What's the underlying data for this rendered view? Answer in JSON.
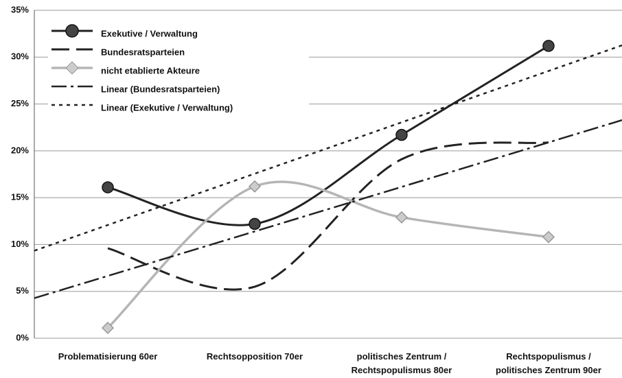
{
  "chart_data": {
    "type": "line",
    "categories": [
      "Problematisierung 60er",
      "Rechtsopposition 70er",
      "politisches Zentrum /\nRechtspopulismus 80er",
      "Rechtspopulismus /\npolitisches Zentrum 90er"
    ],
    "series": [
      {
        "name": "Exekutive / Verwaltung",
        "color": "#222222",
        "values": [
          16.1,
          12.2,
          21.7,
          31.2
        ]
      },
      {
        "name": "Bundesratsparteien",
        "color": "#222222",
        "values": [
          9.6,
          5.5,
          19.1,
          20.9
        ]
      },
      {
        "name": "nicht etablierte Akteure",
        "color": "#b5b5b5",
        "values": [
          1.1,
          16.2,
          12.9,
          10.8
        ]
      },
      {
        "name": "Linear (Bundesratsparteien)",
        "color": "#222222",
        "trend_of": "Bundesratsparteien"
      },
      {
        "name": "Linear (Exekutive / Verwaltung)",
        "color": "#222222",
        "trend_of": "Exekutive / Verwaltung"
      }
    ],
    "ylim": [
      0,
      35
    ],
    "yticks": [
      {
        "value": 0,
        "label": "0%"
      },
      {
        "value": 5,
        "label": "5%"
      },
      {
        "value": 10,
        "label": "10%"
      },
      {
        "value": 15,
        "label": "15%"
      },
      {
        "value": 20,
        "label": "20%"
      },
      {
        "value": 25,
        "label": "25%"
      },
      {
        "value": 30,
        "label": "30%"
      },
      {
        "value": 35,
        "label": "35%"
      }
    ],
    "grid": true,
    "legend": "top-left"
  }
}
